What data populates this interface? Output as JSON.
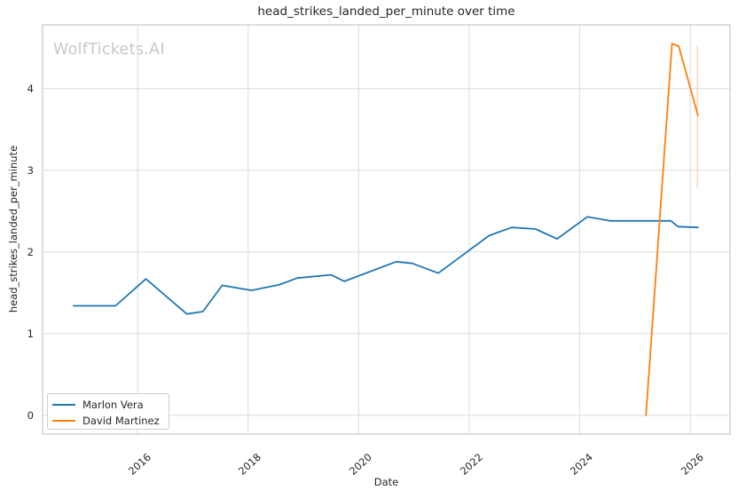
{
  "figure": {
    "title": "head_strikes_landed_per_minute over time",
    "watermark": "WolfTickets.AI",
    "xlabel": "Date",
    "ylabel": "head_strikes_landed_per_minute"
  },
  "legend": {
    "items": [
      {
        "label": "Marlon Vera",
        "color": "#1f77b4"
      },
      {
        "label": "David Martinez",
        "color": "#ff7f0e"
      }
    ]
  },
  "chart_data": {
    "type": "line",
    "title": "head_strikes_landed_per_minute over time",
    "xlabel": "Date",
    "ylabel": "head_strikes_landed_per_minute",
    "xlim": [
      2014.28,
      2026.72
    ],
    "ylim": [
      -0.23,
      4.78
    ],
    "x_ticks": [
      2016,
      2018,
      2020,
      2022,
      2024,
      2026
    ],
    "y_ticks": [
      0,
      1,
      2,
      3,
      4
    ],
    "grid": true,
    "grid_color": "#dcdcdc",
    "spine_color": "#c9c9c9",
    "legend_position": "lower left",
    "series": [
      {
        "name": "Marlon Vera",
        "color": "#1f77b4",
        "x": [
          2014.84,
          2015.6,
          2016.15,
          2016.89,
          2017.18,
          2017.53,
          2018.06,
          2018.57,
          2018.89,
          2019.5,
          2019.74,
          2020.68,
          2020.97,
          2021.44,
          2022.36,
          2022.77,
          2023.2,
          2023.59,
          2024.14,
          2024.55,
          2025.65,
          2025.78,
          2026.14
        ],
        "y": [
          1.34,
          1.34,
          1.67,
          1.24,
          1.27,
          1.59,
          1.53,
          1.6,
          1.68,
          1.72,
          1.64,
          1.88,
          1.86,
          1.74,
          2.2,
          2.3,
          2.28,
          2.16,
          2.43,
          2.38,
          2.38,
          2.31,
          2.3
        ]
      },
      {
        "name": "David Martinez",
        "color": "#ff7f0e",
        "x": [
          2025.2,
          2025.67,
          2025.79,
          2026.14
        ],
        "y": [
          0.0,
          4.55,
          4.52,
          3.67
        ]
      }
    ],
    "error_bars": [
      {
        "series": "David Martinez",
        "x": 2026.13,
        "y_low": 2.78,
        "y_high": 4.52,
        "color": "#ff7f0e",
        "opacity": 0.3
      }
    ]
  }
}
